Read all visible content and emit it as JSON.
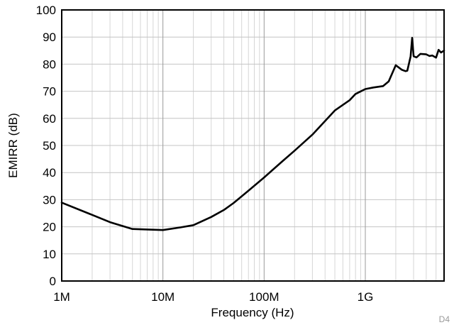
{
  "chart_data": {
    "type": "line",
    "title": "",
    "xlabel": "Frequency (Hz)",
    "ylabel": "EMIRR (dB)",
    "xscale": "log",
    "xlim": [
      1000000,
      6000000000
    ],
    "ylim": [
      0,
      100
    ],
    "grid": true,
    "legend": "none",
    "x_ticks": [
      {
        "value": 1000000,
        "label": "1M"
      },
      {
        "value": 10000000,
        "label": "10M"
      },
      {
        "value": 100000000,
        "label": "100M"
      },
      {
        "value": 1000000000,
        "label": "1G"
      }
    ],
    "y_ticks": [
      {
        "value": 0,
        "label": "0"
      },
      {
        "value": 10,
        "label": "10"
      },
      {
        "value": 20,
        "label": "20"
      },
      {
        "value": 30,
        "label": "30"
      },
      {
        "value": 40,
        "label": "40"
      },
      {
        "value": 50,
        "label": "50"
      },
      {
        "value": 60,
        "label": "60"
      },
      {
        "value": 70,
        "label": "70"
      },
      {
        "value": 80,
        "label": "80"
      },
      {
        "value": 90,
        "label": "90"
      },
      {
        "value": 100,
        "label": "100"
      }
    ],
    "series": [
      {
        "color": "#000000",
        "x": [
          1000000,
          2000000,
          3000000,
          5000000,
          7000000,
          10000000,
          15000000,
          20000000,
          30000000,
          40000000,
          50000000,
          70000000,
          100000000,
          150000000,
          200000000,
          300000000,
          500000000,
          700000000,
          800000000,
          1000000000,
          1200000000,
          1500000000,
          1700000000,
          2000000000,
          2300000000,
          2500000000,
          2600000000,
          2800000000,
          2900000000,
          3000000000,
          3200000000,
          3500000000,
          4000000000,
          4300000000,
          4600000000,
          5000000000,
          5300000000,
          5600000000,
          6000000000
        ],
        "y": [
          28.9,
          24.4,
          21.7,
          19.2,
          19.0,
          18.8,
          19.8,
          20.6,
          23.6,
          26.2,
          28.8,
          33.3,
          38.2,
          44.0,
          48.1,
          54.0,
          62.9,
          66.7,
          69.0,
          70.8,
          71.4,
          71.9,
          73.6,
          79.6,
          77.9,
          77.4,
          77.6,
          82.8,
          89.7,
          82.9,
          82.5,
          83.8,
          83.6,
          83.0,
          83.2,
          82.4,
          85.3,
          84.3,
          85.0
        ]
      }
    ]
  },
  "figure_tag": "D4"
}
